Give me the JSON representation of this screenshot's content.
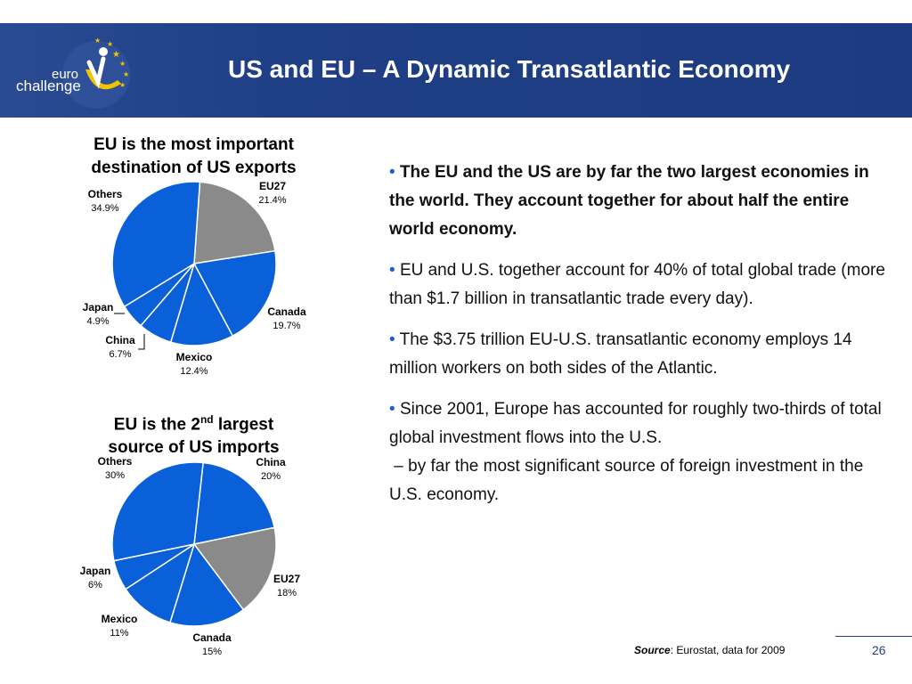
{
  "slide": {
    "title": "US and EU – A Dynamic Transatlantic Economy",
    "logo_line1": "euro",
    "logo_line2": "challenge"
  },
  "bullets": [
    {
      "text": "The EU and the US are by far the two largest economies in the world. They account together for about half the entire world economy.",
      "bold": true
    },
    {
      "text": "EU and U.S. together account for 40% of total global trade (more than $1.7 billion in transatlantic trade every day).",
      "bold": false
    },
    {
      "text": "The $3.75 trillion EU-U.S. transatlantic economy employs 14 million workers on both sides of the Atlantic.",
      "bold": false
    },
    {
      "text": "Since 2001, Europe has accounted for roughly two-thirds of total global investment flows into the U.S.",
      "extra": "– by far the most significant source of foreign investment in the U.S. economy.",
      "bold": false
    }
  ],
  "bullet_char": "•",
  "footer": {
    "source_label": "Source",
    "source_text": ": Eurostat, data for 2009",
    "page_number": "26"
  },
  "colors": {
    "header": "#1f3f86",
    "blue_slice": "#0a60d8",
    "gray_slice": "#8a8a8a",
    "bullet": "#1a5cd6"
  },
  "chart_data": [
    {
      "type": "pie",
      "title_line1": "EU is the most important",
      "title_line2": "destination of US exports",
      "slices": [
        {
          "label": "EU27",
          "display": "21.4%",
          "value": 21.4,
          "color": "gray"
        },
        {
          "label": "Canada",
          "display": "19.7%",
          "value": 19.7,
          "color": "blue"
        },
        {
          "label": "Mexico",
          "display": "12.4%",
          "value": 12.4,
          "color": "blue"
        },
        {
          "label": "China",
          "display": "6.7%",
          "value": 6.7,
          "color": "blue"
        },
        {
          "label": "Japan",
          "display": "4.9%",
          "value": 4.9,
          "color": "blue"
        },
        {
          "label": "Others",
          "display": "34.9%",
          "value": 34.9,
          "color": "blue"
        }
      ]
    },
    {
      "type": "pie",
      "title_line1_a": "EU is the 2",
      "title_line1_sup": "nd",
      "title_line1_b": " largest",
      "title_line2": "source of US imports",
      "slices": [
        {
          "label": "China",
          "display": "20%",
          "value": 20,
          "color": "blue"
        },
        {
          "label": "EU27",
          "display": "18%",
          "value": 18,
          "color": "gray"
        },
        {
          "label": "Canada",
          "display": "15%",
          "value": 15,
          "color": "blue"
        },
        {
          "label": "Mexico",
          "display": "11%",
          "value": 11,
          "color": "blue"
        },
        {
          "label": "Japan",
          "display": "6%",
          "value": 6,
          "color": "blue"
        },
        {
          "label": "Others",
          "display": "30%",
          "value": 30,
          "color": "blue"
        }
      ]
    }
  ]
}
